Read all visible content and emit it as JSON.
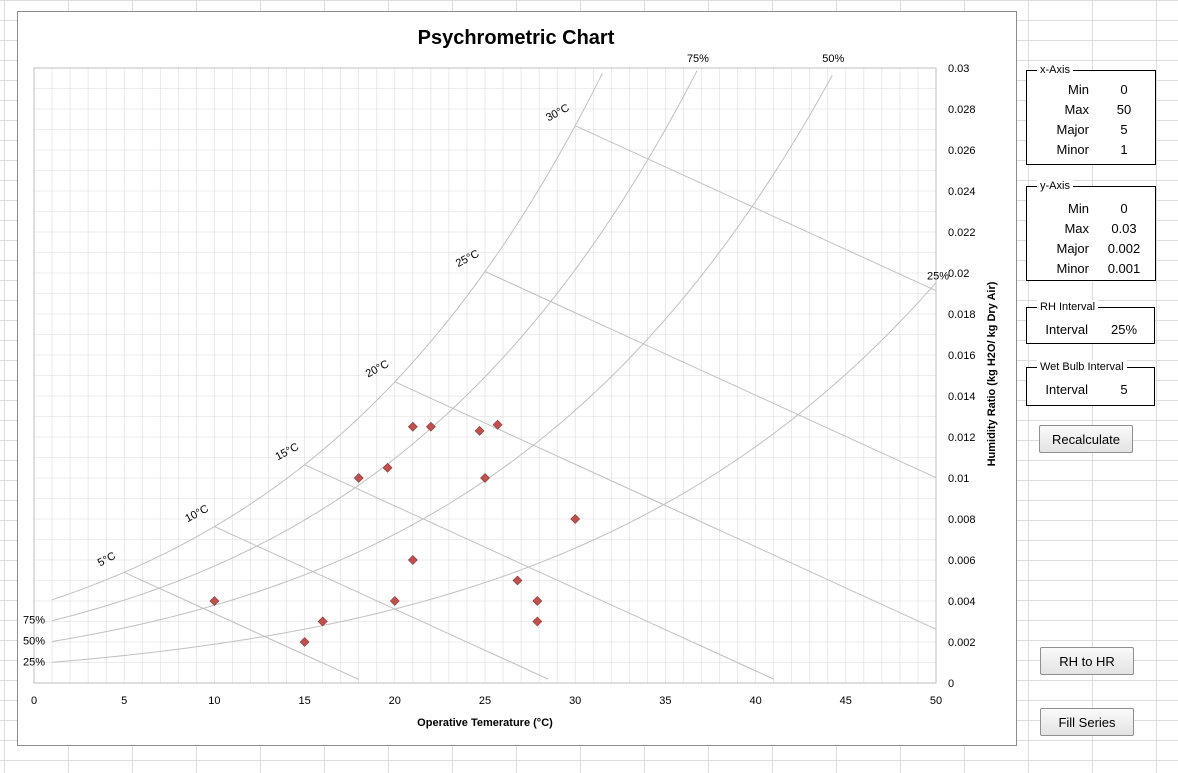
{
  "chart_data": {
    "type": "scatter",
    "title": "Psychrometric Chart",
    "xlabel": "Operative Temerature (°C)",
    "ylabel": "Humidity Ratio (kg H2O/ kg Dry Air)",
    "xlim": [
      0,
      50
    ],
    "ylim": [
      0,
      0.03
    ],
    "x_ticks": [
      "0",
      "5",
      "10",
      "15",
      "20",
      "25",
      "30",
      "35",
      "40",
      "45",
      "50"
    ],
    "y_ticks": [
      "0",
      "0.002",
      "0.004",
      "0.006",
      "0.008",
      "0.01",
      "0.012",
      "0.014",
      "0.016",
      "0.018",
      "0.02",
      "0.022",
      "0.024",
      "0.026",
      "0.028",
      "0.03"
    ],
    "x_major": 5,
    "x_minor": 1,
    "y_major": 0.002,
    "y_minor": 0.001,
    "grid": true,
    "y_axis_side": "right",
    "marker": "diamond",
    "marker_color": "#c0504d",
    "points": [
      {
        "x": 10,
        "y": 0.004
      },
      {
        "x": 15,
        "y": 0.002
      },
      {
        "x": 16,
        "y": 0.003
      },
      {
        "x": 18,
        "y": 0.01
      },
      {
        "x": 19.6,
        "y": 0.0105
      },
      {
        "x": 20,
        "y": 0.004
      },
      {
        "x": 21,
        "y": 0.006
      },
      {
        "x": 21,
        "y": 0.0125
      },
      {
        "x": 22,
        "y": 0.0125
      },
      {
        "x": 24.7,
        "y": 0.0123
      },
      {
        "x": 25,
        "y": 0.01
      },
      {
        "x": 25.7,
        "y": 0.0126
      },
      {
        "x": 26.8,
        "y": 0.005
      },
      {
        "x": 27.9,
        "y": 0.004
      },
      {
        "x": 27.9,
        "y": 0.003
      },
      {
        "x": 30,
        "y": 0.008
      }
    ],
    "rh_curves": [
      {
        "label": "100%",
        "rh": 1.0,
        "show_label": false
      },
      {
        "label": "75%",
        "rh": 0.75,
        "show_label": true
      },
      {
        "label": "50%",
        "rh": 0.5,
        "show_label": true
      },
      {
        "label": "25%",
        "rh": 0.25,
        "show_label": true
      }
    ],
    "wet_bulb_lines": [
      {
        "label": "5°C",
        "twb": 5
      },
      {
        "label": "10°C",
        "twb": 10
      },
      {
        "label": "15°C",
        "twb": 15
      },
      {
        "label": "20°C",
        "twb": 20
      },
      {
        "label": "25°C",
        "twb": 25
      },
      {
        "label": "30°C",
        "twb": 30
      }
    ],
    "colors": {
      "curve": "#c0c0c0",
      "grid": "#dcdcdc",
      "marker": "#c0504d"
    }
  },
  "xaxis_panel": {
    "title": "x-Axis",
    "rows": [
      {
        "label": "Min",
        "value": "0"
      },
      {
        "label": "Max",
        "value": "50"
      },
      {
        "label": "Major",
        "value": "5"
      },
      {
        "label": "Minor",
        "value": "1"
      }
    ]
  },
  "yaxis_panel": {
    "title": "y-Axis",
    "rows": [
      {
        "label": "Min",
        "value": "0"
      },
      {
        "label": "Max",
        "value": "0.03"
      },
      {
        "label": "Major",
        "value": "0.002"
      },
      {
        "label": "Minor",
        "value": "0.001"
      }
    ]
  },
  "rh_panel": {
    "title": "RH Interval",
    "label": "Interval",
    "value": "25%"
  },
  "wb_panel": {
    "title": "Wet Bulb Interval",
    "label": "Interval",
    "value": "5"
  },
  "buttons": {
    "recalculate": "Recalculate",
    "rh_to_hr": "RH to HR",
    "fill_series": "Fill Series"
  }
}
